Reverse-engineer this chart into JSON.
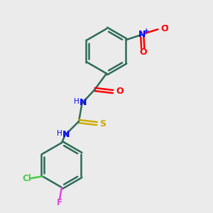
{
  "background_color": "#ebebeb",
  "bond_color": "#2d6b5a",
  "n_color": "#0000ff",
  "o_color": "#ff0000",
  "s_color": "#ccaa00",
  "cl_color": "#44cc44",
  "f_color": "#dd44dd",
  "figsize": [
    3.0,
    3.0
  ],
  "dpi": 100,
  "xlim": [
    0,
    10
  ],
  "ylim": [
    0,
    10
  ]
}
